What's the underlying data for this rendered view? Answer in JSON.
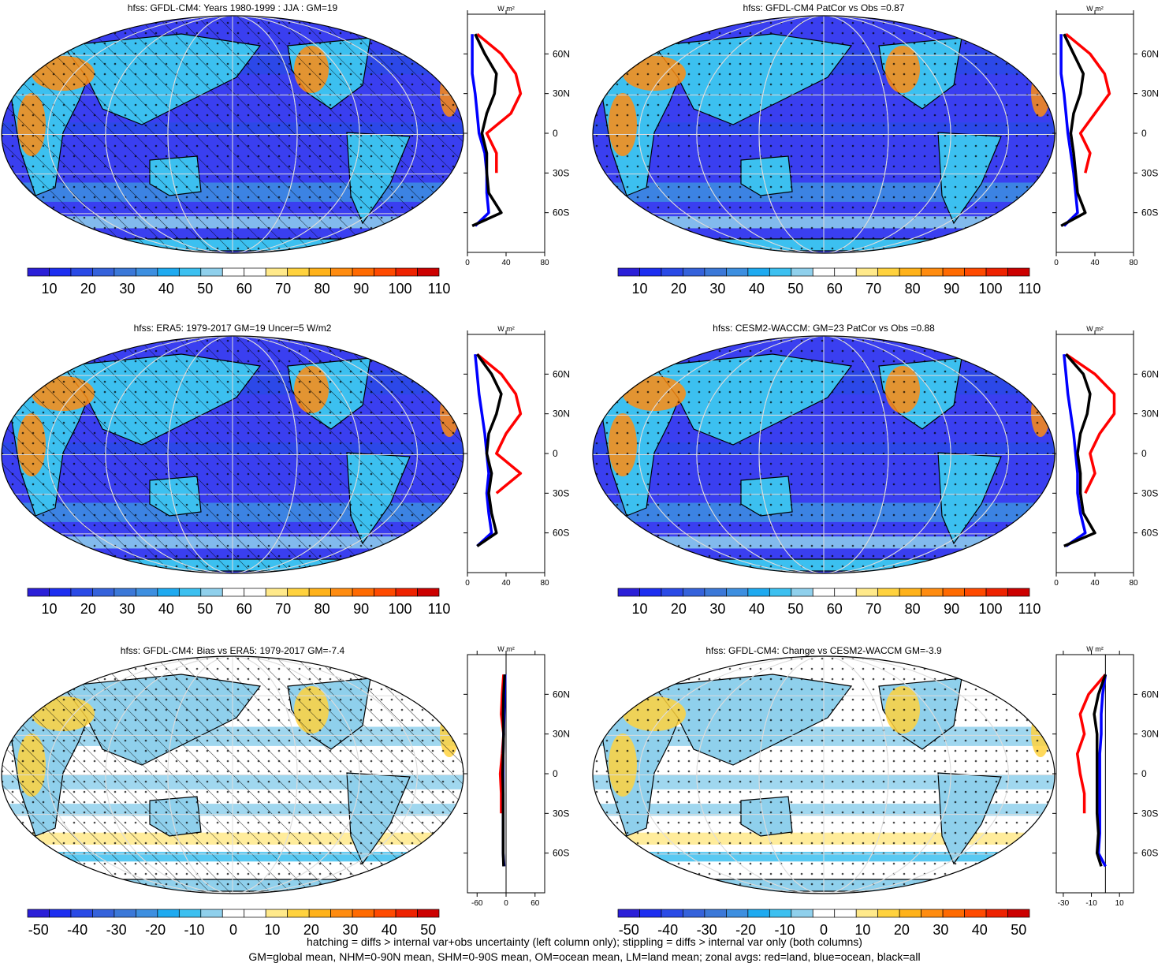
{
  "footer": {
    "line1": "hatching = diffs > internal var+obs uncertainty (left column only); stippling = diffs > internal var only (both columns)",
    "line2": "GM=global mean, NHM=0-90N mean, SHM=0-90S mean, OM=ocean mean, LM=land mean; zonal avgs: red=land, blue=ocean, black=all"
  },
  "colors": {
    "land_line": "#ff0000",
    "ocean_line": "#0000ff",
    "all_line": "#000000",
    "abs_scale": [
      "#2b1fd8",
      "#1d2ef0",
      "#2a4ae6",
      "#3562db",
      "#3b78d8",
      "#3d8fe0",
      "#1eaaf0",
      "#3cc0f0",
      "#8fd0ec",
      "#ffffff",
      "#ffffff",
      "#ffe98a",
      "#ffd23e",
      "#ffb21a",
      "#ff8c10",
      "#ff6a00",
      "#ff4a00",
      "#ee2200",
      "#cc0000"
    ],
    "diff_scale": [
      "#2b1fd8",
      "#1d2ef0",
      "#2a4ae6",
      "#3562db",
      "#3b78d8",
      "#3d8fe0",
      "#1eaaf0",
      "#3cc0f0",
      "#8fd0ec",
      "#ffffff",
      "#ffffff",
      "#ffe98a",
      "#ffd23e",
      "#ffb21a",
      "#ff8c10",
      "#ff6a00",
      "#ff4a00",
      "#ee2200",
      "#cc0000"
    ]
  },
  "lat_ticks": [
    "60N",
    "30N",
    "0",
    "30S",
    "60S"
  ],
  "chart_data": [
    {
      "type": "heatmap",
      "title": "hfss: GFDL-CM4: Years 1980-1999 : JJA : GM=19",
      "colorbar_labels": [
        "10",
        "20",
        "30",
        "40",
        "50",
        "60",
        "70",
        "80",
        "90",
        "100",
        "110"
      ],
      "zonal": {
        "unit": "W m²",
        "xticks": [
          "0",
          "40",
          "80"
        ],
        "xlim": [
          0,
          80
        ],
        "lat": [
          75,
          60,
          45,
          30,
          15,
          0,
          -15,
          -30,
          -45,
          -60,
          -70
        ],
        "land": [
          10,
          35,
          50,
          55,
          45,
          20,
          30,
          30,
          null,
          null,
          null
        ],
        "ocean": [
          5,
          5,
          5,
          8,
          10,
          12,
          18,
          20,
          20,
          22,
          8
        ],
        "all": [
          8,
          18,
          30,
          28,
          20,
          15,
          20,
          20,
          22,
          35,
          5
        ]
      }
    },
    {
      "type": "heatmap",
      "title": "hfss: GFDL-CM4 PatCor vs Obs =0.87",
      "colorbar_labels": [
        "10",
        "20",
        "30",
        "40",
        "50",
        "60",
        "70",
        "80",
        "90",
        "100",
        "110"
      ],
      "zonal": {
        "unit": "W m²",
        "xticks": [
          "0",
          "40",
          "80"
        ],
        "xlim": [
          0,
          80
        ],
        "lat": [
          75,
          60,
          45,
          30,
          15,
          0,
          -15,
          -30,
          -45,
          -60,
          -70
        ],
        "land": [
          10,
          35,
          50,
          55,
          40,
          25,
          35,
          30,
          null,
          null,
          null
        ],
        "ocean": [
          5,
          5,
          5,
          8,
          10,
          12,
          15,
          18,
          20,
          22,
          8
        ],
        "all": [
          8,
          18,
          28,
          25,
          18,
          15,
          18,
          20,
          22,
          30,
          5
        ]
      }
    },
    {
      "type": "heatmap",
      "title": "hfss: ERA5: 1979-2017 GM=19 Uncer=5 W/m2",
      "colorbar_labels": [
        "10",
        "20",
        "30",
        "40",
        "50",
        "60",
        "70",
        "80",
        "90",
        "100",
        "110"
      ],
      "zonal": {
        "unit": "W m²",
        "xticks": [
          "0",
          "40",
          "80"
        ],
        "xlim": [
          0,
          80
        ],
        "lat": [
          75,
          60,
          45,
          30,
          15,
          0,
          -15,
          -30,
          -45,
          -60,
          -70
        ],
        "land": [
          10,
          35,
          50,
          55,
          40,
          30,
          55,
          30,
          null,
          null,
          null
        ],
        "ocean": [
          8,
          10,
          12,
          15,
          18,
          20,
          22,
          20,
          22,
          25,
          10
        ],
        "all": [
          10,
          25,
          35,
          30,
          22,
          20,
          25,
          22,
          25,
          30,
          10
        ]
      }
    },
    {
      "type": "heatmap",
      "title": "hfss: CESM2-WACCM: GM=23 PatCor vs Obs =0.88",
      "colorbar_labels": [
        "10",
        "20",
        "30",
        "40",
        "50",
        "60",
        "70",
        "80",
        "90",
        "100",
        "110"
      ],
      "zonal": {
        "unit": "W m²",
        "xticks": [
          "0",
          "40",
          "80"
        ],
        "xlim": [
          0,
          80
        ],
        "lat": [
          75,
          60,
          45,
          30,
          15,
          0,
          -15,
          -30,
          -45,
          -60,
          -70
        ],
        "land": [
          10,
          40,
          60,
          60,
          45,
          35,
          40,
          30,
          null,
          null,
          null
        ],
        "ocean": [
          8,
          10,
          12,
          15,
          18,
          20,
          22,
          22,
          25,
          30,
          10
        ],
        "all": [
          10,
          28,
          35,
          32,
          25,
          22,
          25,
          25,
          28,
          40,
          8
        ]
      }
    },
    {
      "type": "heatmap",
      "title": "hfss: GFDL-CM4: Bias vs ERA5: 1979-2017 GM=-7.4",
      "colorbar_labels": [
        "-50",
        "-40",
        "-30",
        "-20",
        "-10",
        "0",
        "10",
        "20",
        "30",
        "40",
        "50"
      ],
      "zonal": {
        "unit": "W m²",
        "xticks": [
          "-60",
          "0",
          "60"
        ],
        "xlim": [
          -80,
          80
        ],
        "lat": [
          75,
          60,
          45,
          30,
          15,
          0,
          -15,
          -30,
          -45,
          -60,
          -70
        ],
        "land": [
          -5,
          -8,
          -10,
          -5,
          -8,
          -12,
          -10,
          -10,
          null,
          null,
          null
        ],
        "ocean": [
          -2,
          -3,
          -4,
          -5,
          -6,
          -6,
          -6,
          -6,
          -6,
          -6,
          -4
        ],
        "all": [
          -3,
          -5,
          -6,
          -5,
          -6,
          -7,
          -6,
          -6,
          -6,
          -6,
          -5
        ]
      }
    },
    {
      "type": "heatmap",
      "title": "hfss: GFDL-CM4: Change vs CESM2-WACCM GM=-3.9",
      "colorbar_labels": [
        "-50",
        "-40",
        "-30",
        "-20",
        "-10",
        "0",
        "10",
        "20",
        "30",
        "40",
        "50"
      ],
      "zonal": {
        "unit": "W m²",
        "xticks": [
          "-30",
          "-10",
          "10"
        ],
        "xlim": [
          -35,
          20
        ],
        "lat": [
          75,
          60,
          45,
          30,
          15,
          0,
          -15,
          -30,
          -45,
          -60,
          -70
        ],
        "land": [
          0,
          -12,
          -18,
          -15,
          -20,
          -18,
          -15,
          -15,
          null,
          null,
          null
        ],
        "ocean": [
          0,
          -2,
          -3,
          -3,
          -4,
          -4,
          -4,
          -4,
          -4,
          -5,
          0
        ],
        "all": [
          0,
          -5,
          -8,
          -6,
          -6,
          -6,
          -6,
          -6,
          -5,
          -6,
          -3
        ]
      }
    }
  ]
}
